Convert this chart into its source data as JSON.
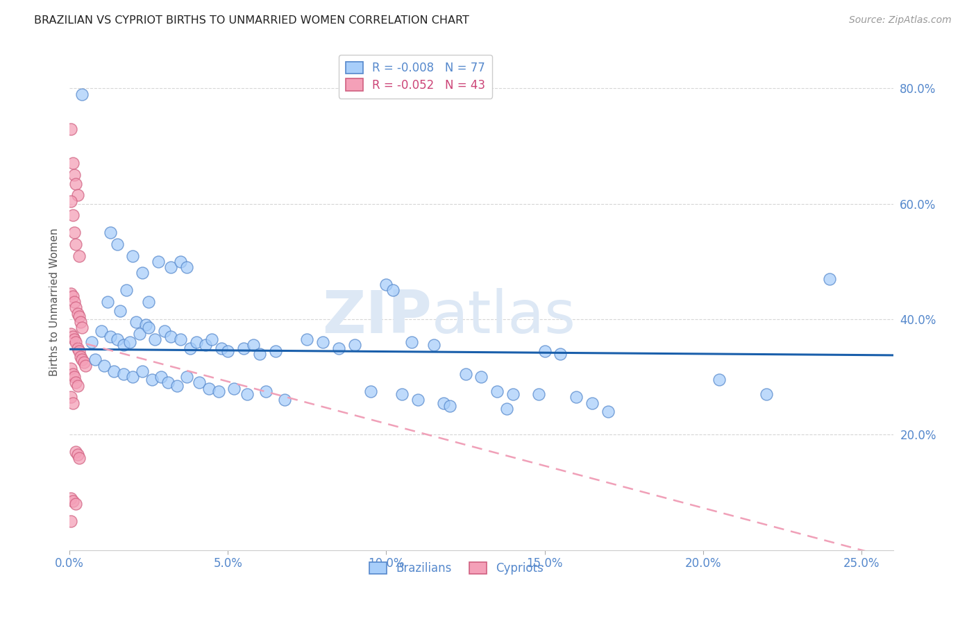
{
  "title": "BRAZILIAN VS CYPRIOT BIRTHS TO UNMARRIED WOMEN CORRELATION CHART",
  "source": "Source: ZipAtlas.com",
  "ylabel_label": "Births to Unmarried Women",
  "x_tick_labels": [
    "0.0%",
    "5.0%",
    "10.0%",
    "15.0%",
    "20.0%",
    "25.0%"
  ],
  "x_tick_vals": [
    0.0,
    5.0,
    10.0,
    15.0,
    20.0,
    25.0
  ],
  "y_tick_labels": [
    "20.0%",
    "40.0%",
    "60.0%",
    "80.0%"
  ],
  "y_tick_vals": [
    20.0,
    40.0,
    60.0,
    80.0
  ],
  "xlim": [
    0.0,
    26.0
  ],
  "ylim": [
    0.0,
    86.0
  ],
  "blue_color": "#A8CEFA",
  "blue_edge_color": "#5588CC",
  "pink_color": "#F4A0B8",
  "pink_edge_color": "#D06080",
  "blue_line_color": "#1A5FAB",
  "pink_line_color": "#F0A0B8",
  "watermark1": "ZIP",
  "watermark2": "atlas",
  "background_color": "#FFFFFF",
  "blue_line_y": 34.8,
  "blue_line_slope": -0.04,
  "pink_line_intercept": 36.5,
  "pink_line_slope": -1.46,
  "blue_dots": [
    [
      0.4,
      79.0
    ],
    [
      1.3,
      55.0
    ],
    [
      1.5,
      53.0
    ],
    [
      2.0,
      51.0
    ],
    [
      2.3,
      48.0
    ],
    [
      1.8,
      45.0
    ],
    [
      2.5,
      43.0
    ],
    [
      2.8,
      50.0
    ],
    [
      3.2,
      49.0
    ],
    [
      1.2,
      43.0
    ],
    [
      1.6,
      41.5
    ],
    [
      2.1,
      39.5
    ],
    [
      2.4,
      39.0
    ],
    [
      3.5,
      50.0
    ],
    [
      3.7,
      49.0
    ],
    [
      0.7,
      36.0
    ],
    [
      1.0,
      38.0
    ],
    [
      1.3,
      37.0
    ],
    [
      1.5,
      36.5
    ],
    [
      1.7,
      35.5
    ],
    [
      1.9,
      36.0
    ],
    [
      2.2,
      37.5
    ],
    [
      2.5,
      38.5
    ],
    [
      2.7,
      36.5
    ],
    [
      3.0,
      38.0
    ],
    [
      3.2,
      37.0
    ],
    [
      3.5,
      36.5
    ],
    [
      3.8,
      35.0
    ],
    [
      4.0,
      36.0
    ],
    [
      4.3,
      35.5
    ],
    [
      4.5,
      36.5
    ],
    [
      4.8,
      35.0
    ],
    [
      5.0,
      34.5
    ],
    [
      5.5,
      35.0
    ],
    [
      5.8,
      35.5
    ],
    [
      6.0,
      34.0
    ],
    [
      6.5,
      34.5
    ],
    [
      0.8,
      33.0
    ],
    [
      1.1,
      32.0
    ],
    [
      1.4,
      31.0
    ],
    [
      1.7,
      30.5
    ],
    [
      2.0,
      30.0
    ],
    [
      2.3,
      31.0
    ],
    [
      2.6,
      29.5
    ],
    [
      2.9,
      30.0
    ],
    [
      3.1,
      29.0
    ],
    [
      3.4,
      28.5
    ],
    [
      3.7,
      30.0
    ],
    [
      4.1,
      29.0
    ],
    [
      4.4,
      28.0
    ],
    [
      4.7,
      27.5
    ],
    [
      5.2,
      28.0
    ],
    [
      5.6,
      27.0
    ],
    [
      6.2,
      27.5
    ],
    [
      6.8,
      26.0
    ],
    [
      7.5,
      36.5
    ],
    [
      8.0,
      36.0
    ],
    [
      8.5,
      35.0
    ],
    [
      9.0,
      35.5
    ],
    [
      10.0,
      46.0
    ],
    [
      10.2,
      45.0
    ],
    [
      10.8,
      36.0
    ],
    [
      11.5,
      35.5
    ],
    [
      9.5,
      27.5
    ],
    [
      10.5,
      27.0
    ],
    [
      11.0,
      26.0
    ],
    [
      11.8,
      25.5
    ],
    [
      12.5,
      30.5
    ],
    [
      13.0,
      30.0
    ],
    [
      13.5,
      27.5
    ],
    [
      14.0,
      27.0
    ],
    [
      12.0,
      25.0
    ],
    [
      13.8,
      24.5
    ],
    [
      15.0,
      34.5
    ],
    [
      15.5,
      34.0
    ],
    [
      14.8,
      27.0
    ],
    [
      16.0,
      26.5
    ],
    [
      16.5,
      25.5
    ],
    [
      17.0,
      24.0
    ],
    [
      20.5,
      29.5
    ],
    [
      22.0,
      27.0
    ],
    [
      24.0,
      47.0
    ]
  ],
  "pink_dots": [
    [
      0.05,
      73.0
    ],
    [
      0.1,
      67.0
    ],
    [
      0.15,
      65.0
    ],
    [
      0.2,
      63.5
    ],
    [
      0.25,
      61.5
    ],
    [
      0.05,
      60.5
    ],
    [
      0.1,
      58.0
    ],
    [
      0.15,
      55.0
    ],
    [
      0.2,
      53.0
    ],
    [
      0.3,
      51.0
    ],
    [
      0.05,
      44.5
    ],
    [
      0.1,
      44.0
    ],
    [
      0.15,
      43.0
    ],
    [
      0.2,
      42.0
    ],
    [
      0.25,
      41.0
    ],
    [
      0.3,
      40.5
    ],
    [
      0.35,
      39.5
    ],
    [
      0.4,
      38.5
    ],
    [
      0.05,
      37.5
    ],
    [
      0.1,
      37.0
    ],
    [
      0.15,
      36.5
    ],
    [
      0.2,
      36.0
    ],
    [
      0.25,
      35.0
    ],
    [
      0.3,
      34.5
    ],
    [
      0.35,
      33.5
    ],
    [
      0.4,
      33.0
    ],
    [
      0.45,
      32.5
    ],
    [
      0.5,
      32.0
    ],
    [
      0.05,
      31.5
    ],
    [
      0.1,
      30.5
    ],
    [
      0.15,
      30.0
    ],
    [
      0.2,
      29.0
    ],
    [
      0.25,
      28.5
    ],
    [
      0.05,
      26.5
    ],
    [
      0.1,
      25.5
    ],
    [
      0.2,
      17.0
    ],
    [
      0.25,
      16.5
    ],
    [
      0.3,
      16.0
    ],
    [
      0.05,
      9.0
    ],
    [
      0.1,
      8.5
    ],
    [
      0.2,
      8.0
    ],
    [
      0.05,
      5.0
    ]
  ]
}
